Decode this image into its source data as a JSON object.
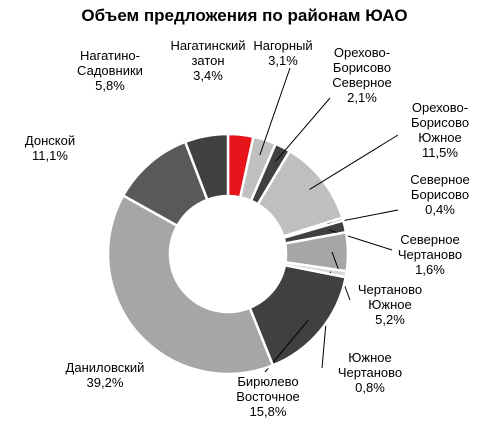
{
  "chart_data": {
    "type": "donut",
    "title": "Объем предложения по районам ЮАО",
    "categories": [
      "Нагатинский\nзатон",
      "Нагорный",
      "Орехово-\nБорисово\nСеверное",
      "Орехово-\nБорисово\nЮжное",
      "Северное\nБорисово",
      "Северное\nЧертаново",
      "Чертаново\nЮжное",
      "Южное\nЧертаново",
      "Бирюлево\nВосточное",
      "Даниловский",
      "Донской",
      "Нагатино-\nСадовники"
    ],
    "values": [
      3.4,
      3.1,
      2.1,
      11.5,
      0.4,
      1.6,
      5.2,
      0.8,
      15.8,
      39.2,
      11.1,
      5.8
    ],
    "value_labels": [
      "3,4%",
      "3,1%",
      "2,1%",
      "11,5%",
      "0,4%",
      "1,6%",
      "5,2%",
      "0,8%",
      "15,8%",
      "39,2%",
      "11,1%",
      "5,8%"
    ],
    "colors": [
      "#e8141b",
      "#c0c0c0",
      "#404040",
      "#bfbfbf",
      "#7f7f7f",
      "#404040",
      "#a6a6a6",
      "#d9d9d9",
      "#404040",
      "#a6a6a6",
      "#595959",
      "#404040"
    ]
  }
}
